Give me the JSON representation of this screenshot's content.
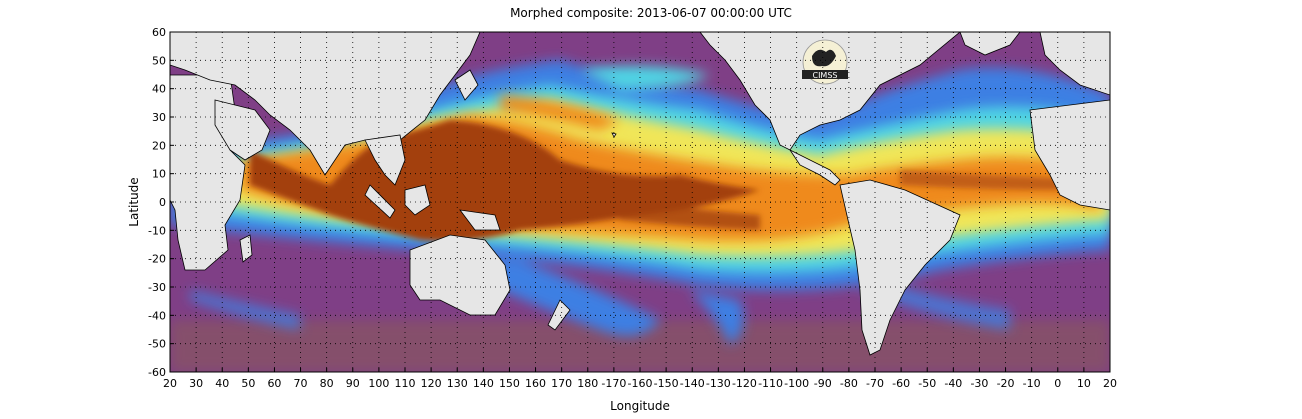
{
  "header": {
    "title": "Morphed composite: 2013-06-07 00:00:00 UTC"
  },
  "axes": {
    "xlabel": "Longitude",
    "ylabel": "Latitude"
  },
  "logo": {
    "text": "CIMSS"
  },
  "chart_data": {
    "type": "heatmap",
    "title": "Morphed composite: 2013-06-07 00:00:00 UTC",
    "xlabel": "Longitude",
    "ylabel": "Latitude",
    "xlim": [
      20,
      380
    ],
    "ylim": [
      -60,
      60
    ],
    "x_tick_labels": [
      "20",
      "30",
      "40",
      "50",
      "60",
      "70",
      "80",
      "90",
      "100",
      "110",
      "120",
      "130",
      "140",
      "150",
      "160",
      "170",
      "180",
      "-170",
      "-160",
      "-150",
      "-140",
      "-130",
      "-120",
      "-110",
      "-100",
      "-90",
      "-80",
      "-70",
      "-60",
      "-50",
      "-40",
      "-30",
      "-20",
      "-10",
      "0",
      "10",
      "20"
    ],
    "y_tick_labels": [
      "60",
      "50",
      "40",
      "30",
      "20",
      "10",
      "0",
      "-10",
      "-20",
      "-30",
      "-40",
      "-50",
      "-60"
    ],
    "grid": true,
    "colors": {
      "land": "#e6e6e6",
      "dry": "#8a3f8f",
      "low": "#3f7fe0",
      "mid_low": "#4fd6e6",
      "mid": "#f2e85a",
      "high": "#f08a1e",
      "very_high": "#a4400e"
    }
  }
}
